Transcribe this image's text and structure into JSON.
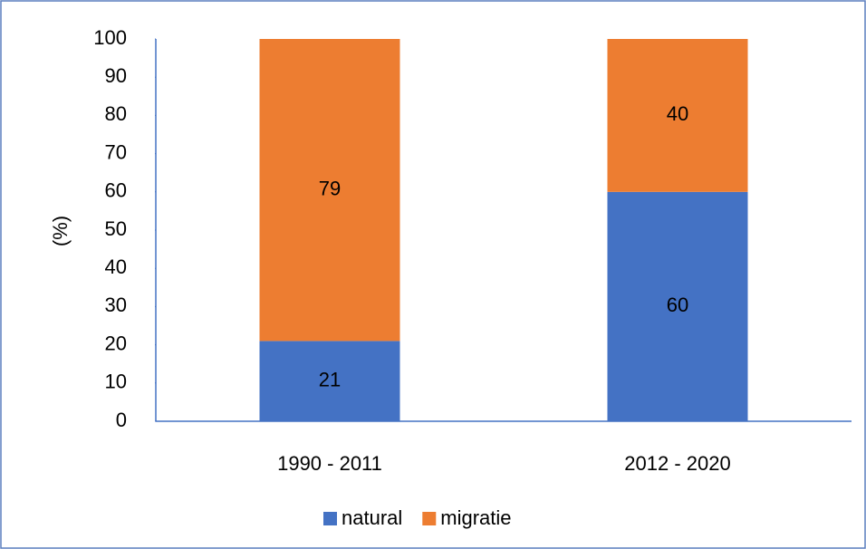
{
  "chart_data": {
    "type": "stacked_bar",
    "y_label": "(%)",
    "categories": [
      "1990 - 2011",
      "2012 - 2020"
    ],
    "series": [
      {
        "name": "natural",
        "color": "#4472c4",
        "values": [
          21,
          60
        ]
      },
      {
        "name": "migratie",
        "color": "#ed7d31",
        "values": [
          79,
          40
        ]
      }
    ],
    "ylim": [
      0,
      100
    ],
    "yticks": [
      0,
      10,
      20,
      30,
      40,
      50,
      60,
      70,
      80,
      90,
      100
    ],
    "legend": "bottom"
  }
}
